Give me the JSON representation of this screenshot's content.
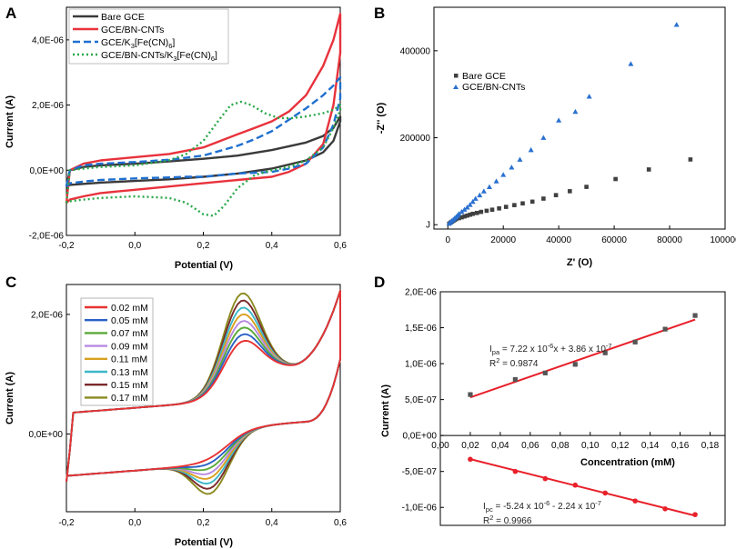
{
  "chart_data": [
    {
      "panel": "A",
      "type": "line",
      "title": "",
      "xlabel": "Potential (V)",
      "ylabel": "Current (A)",
      "xlim": [
        -0.2,
        0.6
      ],
      "ylim": [
        -2e-06,
        5e-06
      ],
      "xticks": [
        "-0,2",
        "0,0",
        "0,2",
        "0,4",
        "0,6"
      ],
      "yticks": [
        "-2,0E-06",
        "0,0E+00",
        "2,0E-06",
        "4,0E-06"
      ],
      "legend": [
        {
          "base": "Bare GCE",
          "sub": "",
          "tail": ""
        },
        {
          "base": "GCE/BN-CNTs",
          "sub": "",
          "tail": ""
        },
        {
          "base": "GCE/K",
          "sub": "3",
          "tail": "[Fe(CN)",
          "sub2": "6",
          "tail2": "]"
        },
        {
          "base": "GCE/BN-CNTs/K",
          "sub": "3",
          "tail": "[Fe(CN)",
          "sub2": "6",
          "tail2": "]"
        }
      ],
      "series": [
        {
          "name": "Bare GCE",
          "color": "#3a3a3a",
          "dash": "solid",
          "x": [
            -0.2,
            -0.19,
            -0.15,
            -0.1,
            0,
            0.1,
            0.2,
            0.3,
            0.4,
            0.5,
            0.55,
            0.58,
            0.6,
            0.6,
            0.58,
            0.55,
            0.5,
            0.4,
            0.3,
            0.2,
            0.1,
            0,
            -0.1,
            -0.15,
            -0.19,
            -0.2
          ],
          "y": [
            -5e-07,
            0.0,
            1e-07,
            1.5e-07,
            2e-07,
            2.7e-07,
            3.5e-07,
            4.5e-07,
            6.2e-07,
            8.5e-07,
            1.05e-06,
            1.3e-06,
            1.65e-06,
            1.5e-06,
            9e-07,
            5.5e-07,
            3e-07,
            5e-08,
            -1e-07,
            -2e-07,
            -2.8e-07,
            -3.3e-07,
            -3.8e-07,
            -4.2e-07,
            -4.5e-07,
            -5e-07
          ]
        },
        {
          "name": "GCE/BN-CNTs",
          "color": "#e8323c",
          "dash": "solid",
          "x": [
            -0.2,
            -0.19,
            -0.15,
            -0.1,
            0,
            0.1,
            0.2,
            0.25,
            0.3,
            0.35,
            0.4,
            0.45,
            0.5,
            0.55,
            0.58,
            0.6,
            0.6,
            0.58,
            0.55,
            0.5,
            0.45,
            0.4,
            0.3,
            0.2,
            0.1,
            0,
            -0.1,
            -0.15,
            -0.19,
            -0.2
          ],
          "y": [
            -1e-06,
            0.0,
            2e-07,
            3e-07,
            4e-07,
            5e-07,
            7e-07,
            9e-07,
            1.1e-06,
            1.3e-06,
            1.5e-06,
            1.8e-06,
            2.3e-06,
            3.2e-06,
            4e-06,
            4.8e-06,
            3.6e-06,
            2e-06,
            8e-07,
            2e-07,
            -5e-08,
            -2e-07,
            -3e-07,
            -4e-07,
            -5e-07,
            -6e-07,
            -7e-07,
            -8e-07,
            -9e-07,
            -1e-06
          ]
        },
        {
          "name": "GCE/K3[Fe(CN)6]",
          "color": "#1e6fd0",
          "dash": "dash",
          "x": [
            -0.2,
            -0.19,
            -0.15,
            -0.1,
            0,
            0.1,
            0.2,
            0.25,
            0.3,
            0.35,
            0.4,
            0.45,
            0.5,
            0.55,
            0.58,
            0.6,
            0.6,
            0.58,
            0.55,
            0.5,
            0.45,
            0.4,
            0.3,
            0.25,
            0.2,
            0.15,
            0.1,
            0,
            -0.1,
            -0.15,
            -0.19,
            -0.2
          ],
          "y": [
            -5e-07,
            0.0,
            1.5e-07,
            2e-07,
            2.5e-07,
            3.2e-07,
            4.5e-07,
            6e-07,
            7.5e-07,
            9.5e-07,
            1.2e-06,
            1.55e-06,
            1.9e-06,
            2.3e-06,
            2.6e-06,
            2.85e-06,
            2.2e-06,
            1.4e-06,
            7e-07,
            2e-07,
            5e-08,
            -5e-08,
            -1e-07,
            -1.5e-07,
            -2e-07,
            -2e-07,
            -2.2e-07,
            -2.5e-07,
            -3e-07,
            -3.5e-07,
            -4e-07,
            -5e-07
          ]
        },
        {
          "name": "GCE/BN-CNTs/K3[Fe(CN)6]",
          "color": "#2ba84a",
          "dash": "dot",
          "x": [
            -0.2,
            -0.19,
            -0.15,
            -0.1,
            0,
            0.1,
            0.15,
            0.2,
            0.25,
            0.28,
            0.31,
            0.34,
            0.38,
            0.42,
            0.46,
            0.5,
            0.55,
            0.58,
            0.6,
            0.6,
            0.58,
            0.55,
            0.5,
            0.45,
            0.4,
            0.35,
            0.3,
            0.26,
            0.23,
            0.2,
            0.15,
            0.1,
            0,
            -0.1,
            -0.15,
            -0.19,
            -0.2
          ],
          "y": [
            -1e-06,
            0.0,
            5e-08,
            1e-07,
            1.5e-07,
            3e-07,
            5e-07,
            9e-07,
            1.6e-06,
            2e-06,
            2.1e-06,
            2e-06,
            1.75e-06,
            1.6e-06,
            1.6e-06,
            1.65e-06,
            1.75e-06,
            1.85e-06,
            2e-06,
            1.85e-06,
            1.3e-06,
            7e-07,
            3e-07,
            1e-07,
            0.0,
            -1.5e-07,
            -5.5e-07,
            -1.1e-06,
            -1.4e-06,
            -1.35e-06,
            -1e-06,
            -8.5e-07,
            -8e-07,
            -8.5e-07,
            -9e-07,
            -9.5e-07,
            -1e-06
          ]
        }
      ]
    },
    {
      "panel": "B",
      "type": "scatter",
      "title": "",
      "xlabel": "Z' (Ο)",
      "ylabel": "-Z'' (Ο)",
      "xlim": [
        -5000,
        100000
      ],
      "ylim": [
        -10000,
        500000
      ],
      "xticks": [
        "0",
        "20000",
        "40000",
        "60000",
        "80000",
        "100000"
      ],
      "xtick_values": [
        0,
        20000,
        40000,
        60000,
        80000,
        100000
      ],
      "yticks": [
        "J",
        "200000",
        "400000"
      ],
      "ytick_values": [
        0,
        200000,
        400000
      ],
      "legend": [
        "Bare GCE",
        "GCE/BN-CNTs"
      ],
      "series": [
        {
          "name": "Bare GCE",
          "color": "#404040",
          "marker": "square",
          "x": [
            500,
            1000,
            1500,
            2000,
            2500,
            3000,
            4000,
            5000,
            6000,
            7000,
            8000,
            9000,
            10500,
            12000,
            14000,
            16000,
            18500,
            21000,
            24000,
            27000,
            30500,
            34500,
            39000,
            44000,
            50000,
            60500,
            72500,
            87500
          ],
          "y": [
            2500,
            5000,
            7000,
            9000,
            11000,
            13000,
            15000,
            17000,
            19000,
            21000,
            23000,
            25000,
            27000,
            29500,
            32000,
            34500,
            37500,
            41000,
            45000,
            49000,
            53000,
            60000,
            68000,
            77000,
            87000,
            105000,
            127000,
            150000
          ]
        },
        {
          "name": "GCE/BN-CNTs",
          "color": "#2a70d0",
          "marker": "triangle",
          "x": [
            500,
            1000,
            1500,
            2000,
            2500,
            3000,
            3500,
            4000,
            5000,
            6000,
            7000,
            8000,
            9000,
            10000,
            11500,
            13000,
            15000,
            17500,
            20000,
            23000,
            26000,
            30000,
            34500,
            40000,
            46000,
            51000,
            66000,
            82500
          ],
          "y": [
            3000,
            6000,
            9000,
            12000,
            15000,
            18000,
            21000,
            25000,
            30000,
            35000,
            40000,
            46000,
            53000,
            60000,
            68000,
            77000,
            87000,
            100000,
            115000,
            132000,
            150000,
            172000,
            200000,
            240000,
            260000,
            295000,
            370000,
            460000
          ]
        }
      ]
    },
    {
      "panel": "C",
      "type": "line",
      "title": "",
      "xlabel": "Potential (V)",
      "ylabel": "Current (A)",
      "xlim": [
        -0.2,
        0.6
      ],
      "ylim": [
        -1.3e-06,
        2.5e-06
      ],
      "xticks": [
        "-0,2",
        "0,0",
        "0,2",
        "0,4",
        "0,6"
      ],
      "yticks": [
        "0,0E+00",
        "2,0E-06"
      ],
      "ytick_values": [
        0,
        2e-06
      ],
      "legend": [
        "0.02 mM",
        "0.05 mM",
        "0.07 mM",
        "0.09 mM",
        "0.11 mM",
        "0.13 mM",
        "0.15 mM",
        "0.17 mM"
      ],
      "series": [
        {
          "name": "0.02 mM",
          "color": "#e83232",
          "peak_scale": 0.0
        },
        {
          "name": "0.05 mM",
          "color": "#2a62c6",
          "peak_scale": 0.14
        },
        {
          "name": "0.07 mM",
          "color": "#5aaa3a",
          "peak_scale": 0.28
        },
        {
          "name": "0.09 mM",
          "color": "#b88ae0",
          "peak_scale": 0.42
        },
        {
          "name": "0.11 mM",
          "color": "#d8a020",
          "peak_scale": 0.56
        },
        {
          "name": "0.13 mM",
          "color": "#3ab8c8",
          "peak_scale": 0.7
        },
        {
          "name": "0.15 mM",
          "color": "#7a2a2a",
          "peak_scale": 0.85
        },
        {
          "name": "0.17 mM",
          "color": "#8a8a20",
          "peak_scale": 1.0
        }
      ],
      "curve_model": {
        "ox_base_peak": 1.05e-06,
        "ox_max_peak": 1.75e-06,
        "red_base_peak": -5.5e-07,
        "red_max_peak": -1.05e-06
      }
    },
    {
      "panel": "D",
      "type": "scatter",
      "title": "",
      "xlabel": "Concentration (mM)",
      "ylabel": "Current (A)",
      "xlim": [
        0.0,
        0.19
      ],
      "ylim": [
        -1.25e-06,
        2e-06
      ],
      "xticks": [
        "0,00",
        "0,02",
        "0,04",
        "0,06",
        "0,08",
        "0,10",
        "0,12",
        "0,14",
        "0,16",
        "0,18"
      ],
      "xtick_values": [
        0,
        0.02,
        0.04,
        0.06,
        0.08,
        0.1,
        0.12,
        0.14,
        0.16,
        0.18
      ],
      "yticks": [
        "-1,0E-06",
        "-5,0E-07",
        "0,0E+00",
        "5,0E-07",
        "1,0E-06",
        "1,5E-06",
        "2,0E-06"
      ],
      "ytick_values": [
        -1e-06,
        -5e-07,
        0,
        5e-07,
        1e-06,
        1.5e-06,
        2e-06
      ],
      "series": [
        {
          "name": "Ipa",
          "color": "#555555",
          "marker": "square",
          "fit_color": "#e8202a",
          "x": [
            0.02,
            0.05,
            0.07,
            0.09,
            0.11,
            0.13,
            0.15,
            0.17
          ],
          "y": [
            5.7e-07,
            7.8e-07,
            8.7e-07,
            9.9e-07,
            1.15e-06,
            1.3e-06,
            1.48e-06,
            1.67e-06
          ],
          "fit": {
            "slope": 7.22e-06,
            "intercept": 3.86e-07
          }
        },
        {
          "name": "Ipc",
          "color": "#e8202a",
          "marker": "circle",
          "fit_color": "#e8202a",
          "x": [
            0.02,
            0.05,
            0.07,
            0.09,
            0.11,
            0.13,
            0.15,
            0.17
          ],
          "y": [
            -3.3e-07,
            -5e-07,
            -6e-07,
            -6.9e-07,
            -8e-07,
            -9.1e-07,
            -1.02e-06,
            -1.1e-06
          ],
          "fit": {
            "slope": -5.24e-06,
            "intercept": -2.24e-07
          }
        }
      ],
      "annotations": {
        "ipa_eq": {
          "I": "I",
          "sub": "pa",
          "rest": " = 7.22 x 10",
          "exp": "-6",
          "rest2": "x + 3.86 x 10",
          "exp2": "-7"
        },
        "ipa_r2": {
          "base": "R",
          "exp": "2",
          "rest": " = 0.9874"
        },
        "ipc_eq": {
          "I": "I",
          "sub": "pc",
          "rest": " = -5.24 x 10",
          "exp": "-6",
          "rest2": " - 2.24 x 10",
          "exp2": "-7"
        },
        "ipc_r2": {
          "base": "R",
          "exp": "2",
          "rest": " = 0.9966"
        }
      }
    }
  ],
  "panel_labels": [
    "A",
    "B",
    "C",
    "D"
  ]
}
